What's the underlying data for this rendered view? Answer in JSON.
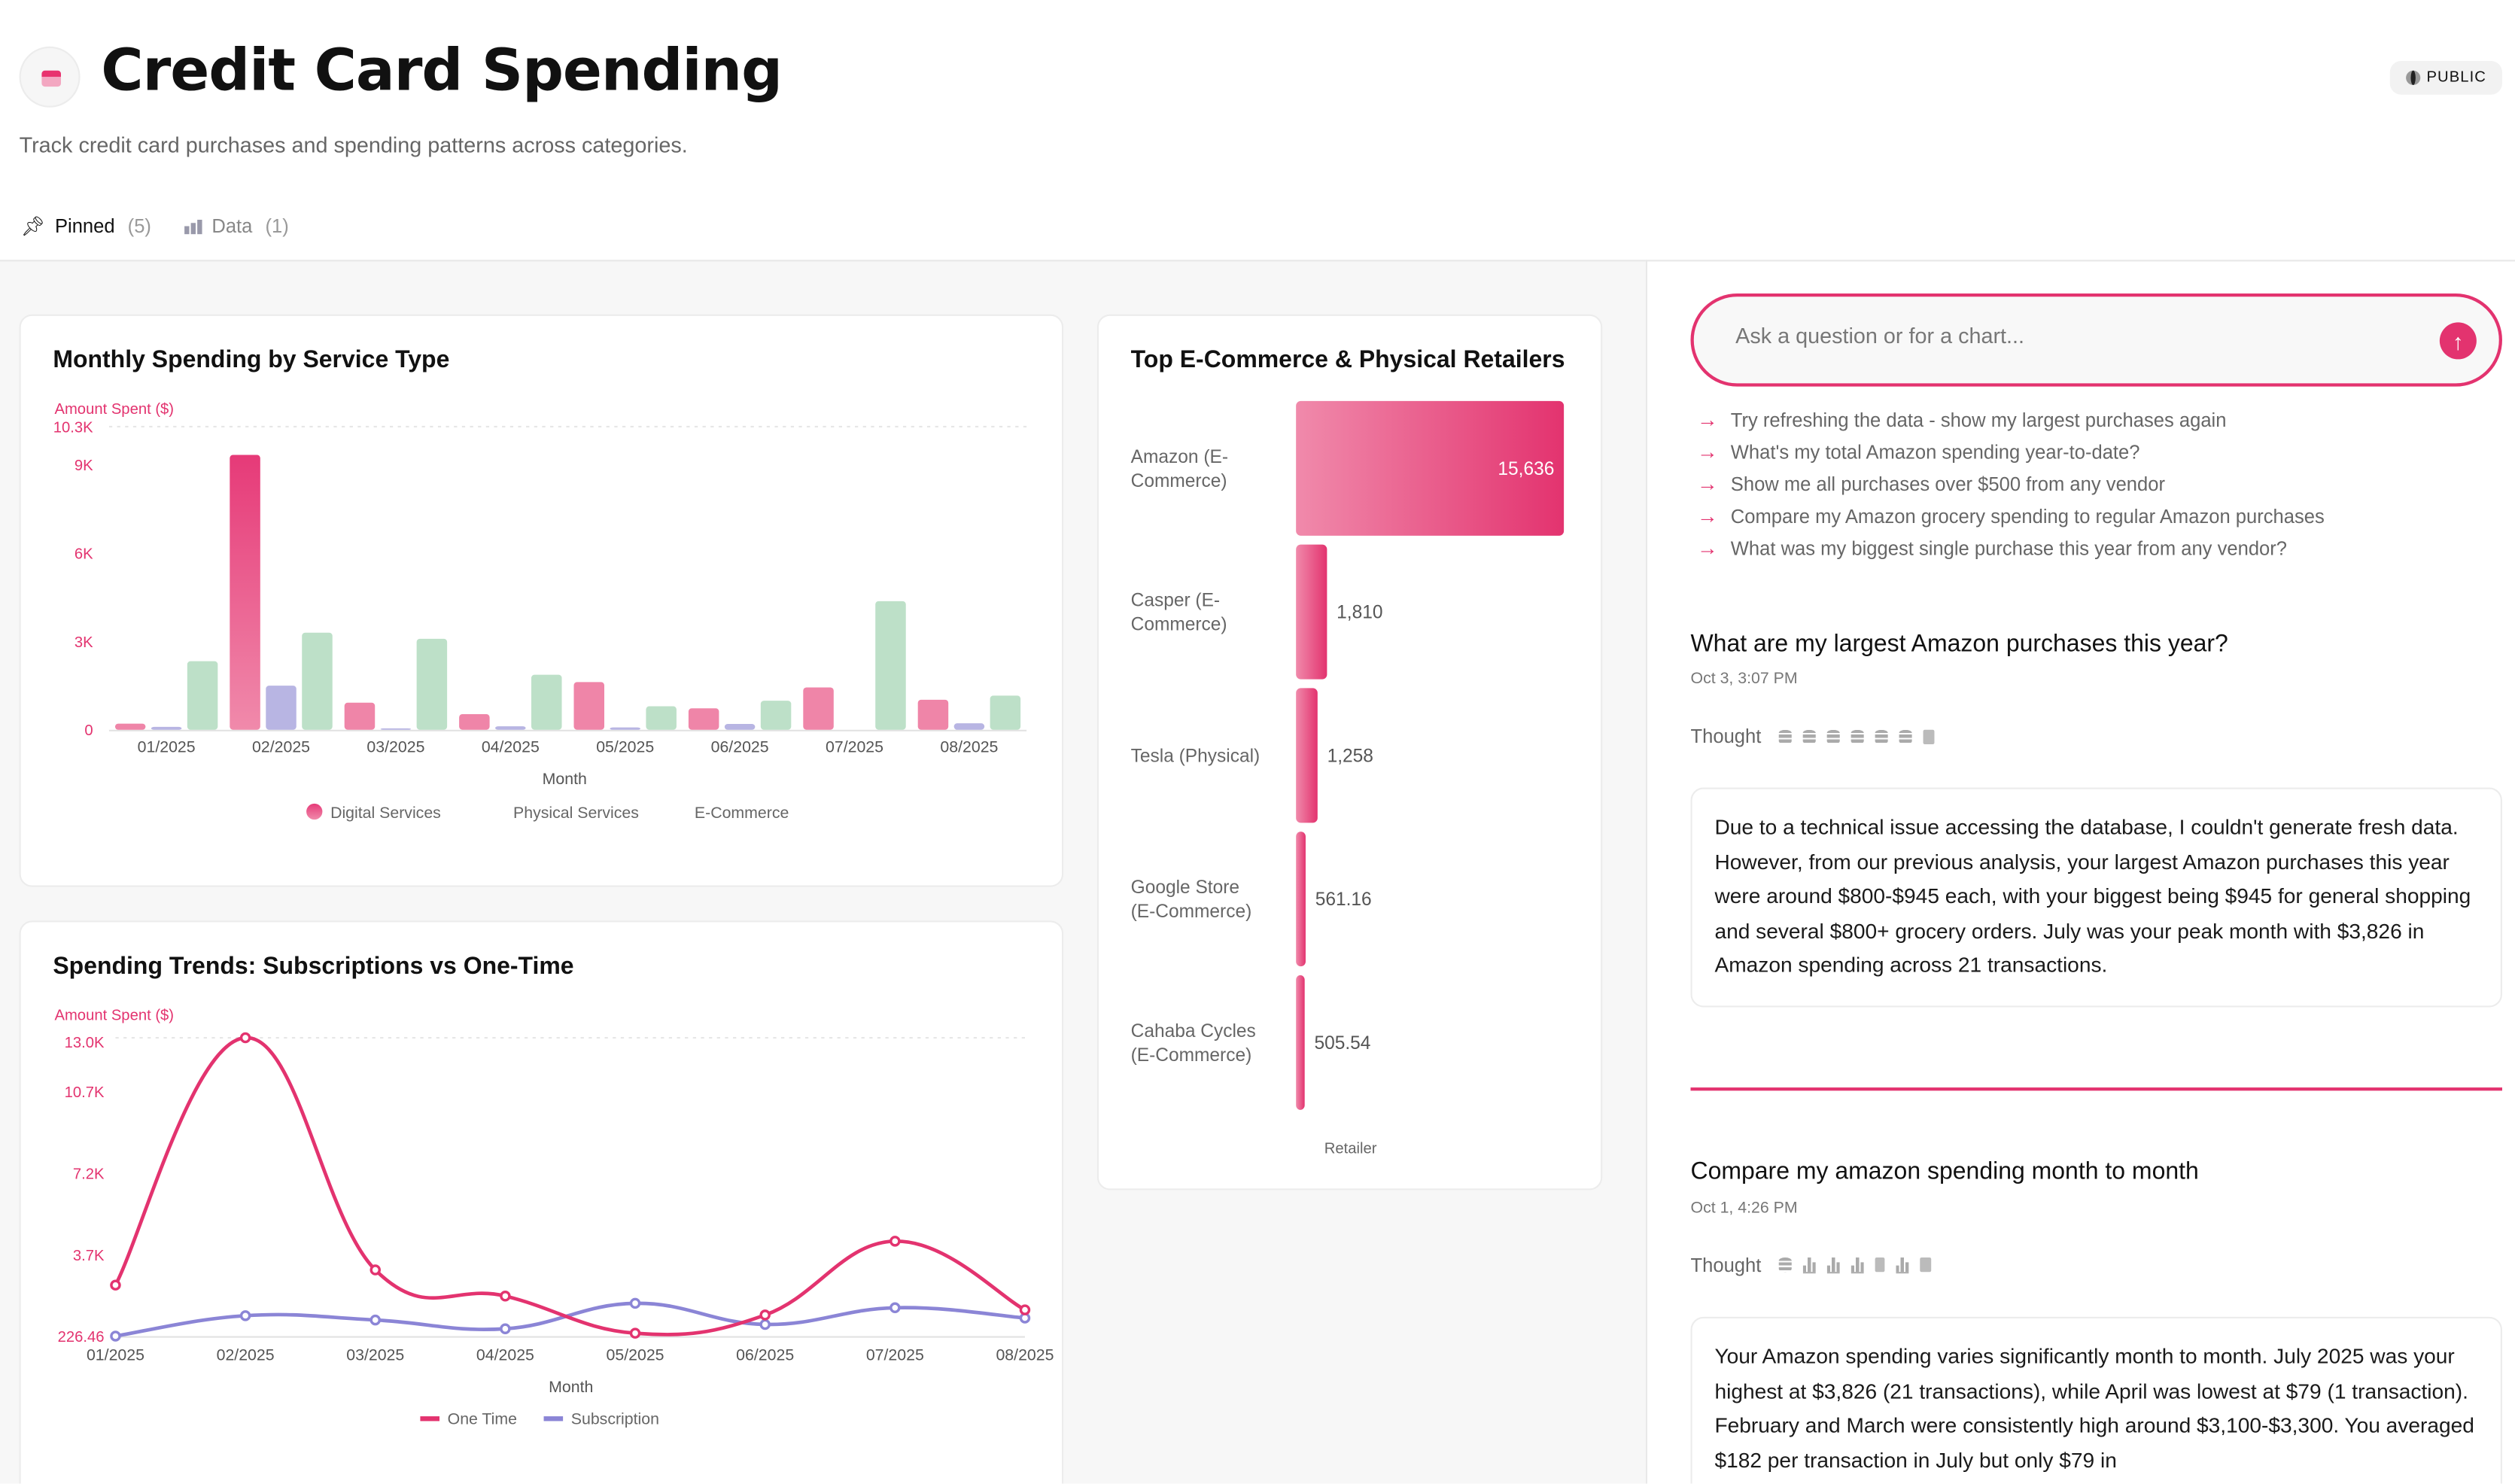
{
  "header": {
    "title": "Credit Card Spending",
    "subtitle": "Track credit card purchases and spending patterns across categories.",
    "visibility": "PUBLIC",
    "tabs": [
      {
        "label": "Pinned",
        "count": "(5)",
        "icon": "pin-icon"
      },
      {
        "label": "Data",
        "count": "(1)",
        "icon": "bar-chart-icon"
      }
    ]
  },
  "colors": {
    "accent": "#e3336f",
    "digital": "#ef85a8",
    "physical": "#b8b5e3",
    "ecommerce": "#bde0c8",
    "one_time": "#e3336f",
    "subscription": "#8b85d6"
  },
  "chart_data": [
    {
      "type": "bar",
      "title": "Monthly Spending by Service Type",
      "ylabel": "Amount Spent ($)",
      "xlabel": "Month",
      "ylim": [
        0,
        10300
      ],
      "yticks": [
        "0",
        "3K",
        "6K",
        "9K",
        "10.3K"
      ],
      "ytick_values": [
        0,
        3000,
        6000,
        9000,
        10300
      ],
      "categories": [
        "01/2025",
        "02/2025",
        "03/2025",
        "04/2025",
        "05/2025",
        "06/2025",
        "07/2025",
        "08/2025"
      ],
      "legend": "bottom",
      "series": [
        {
          "name": "Digital Services",
          "values": [
            210,
            9340,
            920,
            530,
            1620,
            730,
            1440,
            1020
          ]
        },
        {
          "name": "Physical Services",
          "values": [
            100,
            1500,
            50,
            120,
            80,
            200,
            0,
            220
          ]
        },
        {
          "name": "E-Commerce",
          "values": [
            2330,
            3300,
            3090,
            1870,
            800,
            990,
            4370,
            1160
          ]
        }
      ]
    },
    {
      "type": "line",
      "title": "Spending Trends: Subscriptions vs One-Time",
      "ylabel": "Amount Spent ($)",
      "xlabel": "Month",
      "ylim": [
        226.46,
        13000
      ],
      "yticks": [
        "226.46",
        "3.7K",
        "7.2K",
        "10.7K",
        "13.0K"
      ],
      "ytick_values": [
        226.46,
        3700,
        7200,
        10700,
        13000
      ],
      "categories": [
        "01/2025",
        "02/2025",
        "03/2025",
        "04/2025",
        "05/2025",
        "06/2025",
        "07/2025",
        "08/2025"
      ],
      "legend": "bottom",
      "series": [
        {
          "name": "One Time",
          "values": [
            2410,
            13000,
            3060,
            1940,
            350,
            1130,
            4290,
            1350
          ]
        },
        {
          "name": "Subscription",
          "values": [
            226.46,
            1100,
            915,
            540,
            1630,
            725,
            1440,
            1000
          ]
        }
      ]
    },
    {
      "type": "bar",
      "orientation": "horizontal",
      "title": "Top E-Commerce & Physical Retailers",
      "xlabel": "Retailer",
      "categories": [
        "Amazon (E-Commerce)",
        "Casper (E-Commerce)",
        "Tesla (Physical)",
        "Google Store (E-Commerce)",
        "Cahaba Cycles (E-Commerce)"
      ],
      "category_lines": [
        [
          "Amazon (E-",
          "Commerce)"
        ],
        [
          "Casper (E-",
          "Commerce)"
        ],
        [
          "Tesla (Physical)"
        ],
        [
          "Google Store",
          "(E-Commerce)"
        ],
        [
          "Cahaba Cycles",
          "(E-Commerce)"
        ]
      ],
      "values": [
        15636,
        1810,
        1258,
        561.16,
        505.54
      ],
      "value_labels": [
        "15,636",
        "1,810",
        "1,258",
        "561.16",
        "505.54"
      ]
    }
  ],
  "chat": {
    "placeholder": "Ask a question or for a chart...",
    "suggestions": [
      "Try refreshing the data - show my largest purchases again",
      "What's my total Amazon spending year-to-date?",
      "Show me all purchases over $500 from any vendor",
      "Compare my Amazon grocery spending to regular Amazon purchases",
      "What was my biggest single purchase this year from any vendor?"
    ],
    "thought_label": "Thought",
    "messages": [
      {
        "question": "What are my largest Amazon purchases this year?",
        "date": "Oct 3, 3:07 PM",
        "thought_icons": [
          "database-icon",
          "database-icon",
          "database-icon",
          "database-icon",
          "database-icon",
          "database-icon",
          "document-icon"
        ],
        "answer": "Due to a technical issue accessing the database, I couldn't generate fresh data. However, from our previous analysis, your largest Amazon purchases this year were around $800-$945 each, with your biggest being $945 for general shopping and several $800+ grocery orders. July was your peak month with $3,826 in Amazon spending across 21 transactions."
      },
      {
        "question": "Compare my amazon spending month to month",
        "date": "Oct 1, 4:26 PM",
        "thought_icons": [
          "database-icon",
          "bar-chart-icon",
          "bar-chart-icon",
          "bar-chart-icon",
          "phone-icon",
          "bar-chart-icon",
          "document-icon"
        ],
        "answer": "Your Amazon spending varies significantly month to month. July 2025 was your highest at $3,826 (21 transactions), while April was lowest at $79 (1 transaction). February and March were consistently high around $3,100-$3,300. You averaged $182 per transaction in July but only $79 in"
      }
    ]
  }
}
